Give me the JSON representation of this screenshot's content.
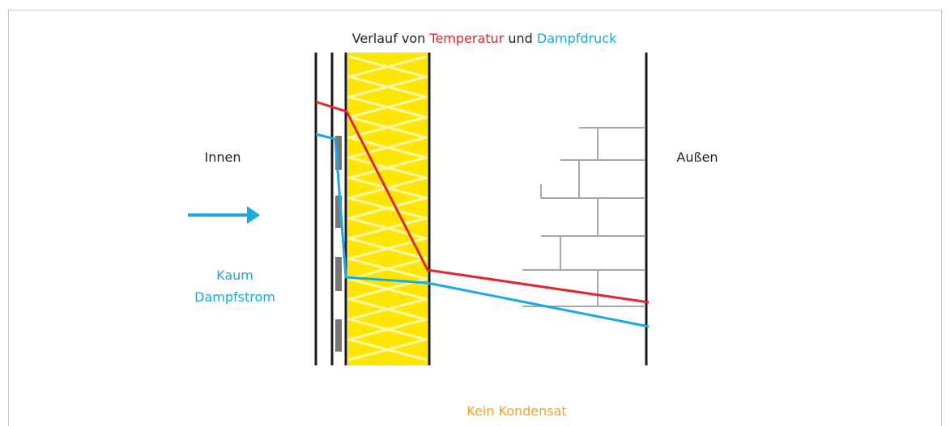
{
  "title": {
    "prefix": "Verlauf von",
    "temperature": "Temperatur",
    "joiner": "und",
    "pressure": "Dampfdruck"
  },
  "labels": {
    "inside": "Innen",
    "outside": "Außen",
    "flow_line1": "Kaum",
    "flow_line2": "Dampfstrom",
    "result": "Kein Kondensat"
  }
}
